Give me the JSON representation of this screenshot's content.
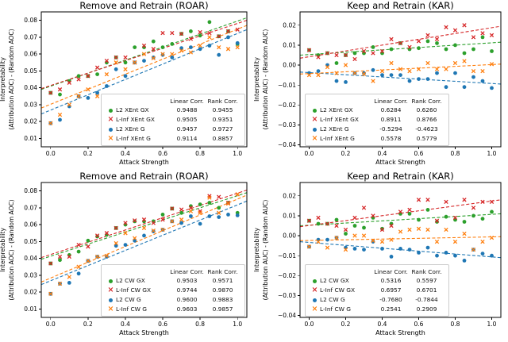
{
  "figure": {
    "background": "#ffffff"
  },
  "chart_data": [
    {
      "id": "roar-xent",
      "type": "scatter",
      "title": "Remove and Retrain (ROAR)",
      "xlabel": "Attack Strength",
      "ylabel": "Interpretability",
      "ylabel2": "(Attribution AOC) - (Random AOC)",
      "xlim": [
        -0.05,
        1.05
      ],
      "ylim": [
        0.005,
        0.085
      ],
      "xticks": [
        0.0,
        0.2,
        0.4,
        0.6,
        0.8,
        1.0
      ],
      "xtick_labels": [
        "0.0",
        "0.2",
        "0.4",
        "0.6",
        "0.8",
        "1.0"
      ],
      "yticks": [
        0.01,
        0.02,
        0.03,
        0.04,
        0.05,
        0.06,
        0.07,
        0.08
      ],
      "ytick_labels": [
        "0.01",
        "0.02",
        "0.03",
        "0.04",
        "0.05",
        "0.06",
        "0.07",
        "0.08"
      ],
      "grid": false,
      "x": [
        0.0,
        0.05,
        0.1,
        0.15,
        0.2,
        0.25,
        0.3,
        0.35,
        0.4,
        0.45,
        0.5,
        0.55,
        0.6,
        0.65,
        0.7,
        0.75,
        0.8,
        0.85,
        0.9,
        0.95,
        1.0
      ],
      "legend": {
        "headers": [
          "Linear Corr.",
          "Rank Corr."
        ],
        "position": "lower right"
      },
      "series": [
        {
          "name": "L2 XEnt GX",
          "marker": "circle",
          "color": "#2ca02c",
          "linear_corr": "0.9488",
          "rank_corr": "0.9455",
          "values": [
            0.037,
            0.036,
            0.044,
            0.047,
            0.047,
            0.048,
            0.055,
            0.058,
            0.055,
            0.064,
            0.064,
            0.0675,
            0.064,
            0.066,
            0.072,
            0.0735,
            0.071,
            0.079,
            0.0705,
            0.0735,
            0.066
          ],
          "trend": {
            "x": [
              -0.05,
              1.05
            ],
            "y": [
              0.039,
              0.0815
            ]
          }
        },
        {
          "name": "L-Inf XEnt GX",
          "marker": "x",
          "color": "#d62728",
          "linear_corr": "0.9505",
          "rank_corr": "0.9351",
          "values": [
            0.037,
            0.039,
            0.043,
            0.045,
            0.047,
            0.052,
            0.056,
            0.058,
            0.058,
            0.055,
            0.065,
            0.063,
            0.0725,
            0.0725,
            0.072,
            0.069,
            0.073,
            0.0725,
            0.0705,
            0.0735,
            0.0745
          ],
          "trend": {
            "x": [
              -0.05,
              1.05
            ],
            "y": [
              0.0395,
              0.08
            ]
          }
        },
        {
          "name": "L2 XEnt G",
          "marker": "circle",
          "color": "#1f77b4",
          "linear_corr": "0.9457",
          "rank_corr": "0.9727",
          "values": [
            0.019,
            0.021,
            0.029,
            0.035,
            0.034,
            0.037,
            0.041,
            0.051,
            0.047,
            0.055,
            0.056,
            0.058,
            0.0595,
            0.058,
            0.0635,
            0.064,
            0.063,
            0.065,
            0.0595,
            0.07,
            0.0665
          ],
          "trend": {
            "x": [
              -0.05,
              1.05
            ],
            "y": [
              0.0245,
              0.0745
            ]
          }
        },
        {
          "name": "L-Inf XEnt G",
          "marker": "x",
          "color": "#ff7f0e",
          "linear_corr": "0.9114",
          "rank_corr": "0.8857",
          "values": [
            0.019,
            0.024,
            0.03,
            0.035,
            0.039,
            0.035,
            0.048,
            0.055,
            0.051,
            0.055,
            0.06,
            0.0575,
            0.06,
            0.06,
            0.062,
            0.061,
            0.065,
            0.07,
            0.064,
            0.063,
            0.064
          ],
          "trend": {
            "x": [
              -0.05,
              1.05
            ],
            "y": [
              0.028,
              0.077
            ]
          }
        }
      ]
    },
    {
      "id": "kar-xent",
      "type": "scatter",
      "title": "Keep and Retrain (KAR)",
      "xlabel": "Attack Strength",
      "ylabel": "Interpretability",
      "ylabel2": "(Attribution AUC) - (Random AUC)",
      "xlim": [
        -0.05,
        1.05
      ],
      "ylim": [
        -0.041,
        0.0267
      ],
      "xticks": [
        0.0,
        0.2,
        0.4,
        0.6,
        0.8,
        1.0
      ],
      "xtick_labels": [
        "0.0",
        "0.2",
        "0.4",
        "0.6",
        "0.8",
        "1.0"
      ],
      "yticks": [
        0.02,
        0.01,
        0.0,
        -0.01,
        -0.02,
        -0.03,
        -0.04
      ],
      "ytick_labels": [
        "0.02",
        "0.01",
        "0.00",
        "−0.01",
        "−0.02",
        "−0.03",
        "−0.04"
      ],
      "grid": false,
      "x": [
        0.0,
        0.05,
        0.1,
        0.15,
        0.2,
        0.25,
        0.3,
        0.35,
        0.4,
        0.45,
        0.5,
        0.55,
        0.6,
        0.65,
        0.7,
        0.75,
        0.8,
        0.85,
        0.9,
        0.95,
        1.0
      ],
      "legend": {
        "headers": [
          "Linear Corr.",
          "Rank Corr."
        ],
        "position": "lower left"
      },
      "series": [
        {
          "name": "L2 XEnt GX",
          "marker": "circle",
          "color": "#2ca02c",
          "linear_corr": "0.6284",
          "rank_corr": "0.6260",
          "values": [
            0.0075,
            0.005,
            0.006,
            0.001,
            0.005,
            0.006,
            0.006,
            0.009,
            0.006,
            0.008,
            0.011,
            0.008,
            0.0085,
            0.012,
            0.011,
            0.008,
            0.01,
            0.006,
            0.008,
            0.014,
            0.007
          ],
          "trend": {
            "x": [
              -0.05,
              1.05
            ],
            "y": [
              0.005,
              0.0115
            ]
          }
        },
        {
          "name": "L-Inf XEnt GX",
          "marker": "x",
          "color": "#d62728",
          "linear_corr": "0.8911",
          "rank_corr": "0.8766",
          "values": [
            0.0075,
            0.004,
            0.006,
            0.005,
            0.005,
            0.003,
            0.007,
            0.006,
            0.007,
            0.013,
            0.011,
            0.009,
            0.012,
            0.015,
            0.013,
            0.019,
            0.0175,
            0.02,
            0.014,
            0.016,
            0.015
          ],
          "trend": {
            "x": [
              -0.05,
              1.05
            ],
            "y": [
              0.0035,
              0.0195
            ]
          }
        },
        {
          "name": "L2 XEnt G",
          "marker": "circle",
          "color": "#1f77b4",
          "linear_corr": "-0.5294",
          "rank_corr": "-0.4623",
          "values": [
            -0.004,
            -0.003,
            0.0,
            -0.008,
            -0.0085,
            -0.004,
            -0.004,
            -0.0025,
            -0.005,
            -0.005,
            -0.005,
            -0.008,
            -0.007,
            -0.007,
            -0.004,
            -0.011,
            -0.004,
            -0.011,
            -0.006,
            -0.008,
            -0.0115
          ],
          "trend": {
            "x": [
              -0.05,
              1.05
            ],
            "y": [
              -0.0035,
              -0.0095
            ]
          }
        },
        {
          "name": "L-Inf XEnt G",
          "marker": "x",
          "color": "#ff7f0e",
          "linear_corr": "0.5578",
          "rank_corr": "0.5779",
          "values": [
            -0.005,
            -0.005,
            -0.001,
            -0.004,
            0.0,
            -0.004,
            -0.0045,
            -0.008,
            -0.003,
            0.001,
            -0.002,
            -0.003,
            -0.002,
            0.001,
            -0.002,
            -0.002,
            0.001,
            0.002,
            -0.003,
            -0.003,
            0.0005
          ],
          "trend": {
            "x": [
              -0.05,
              1.05
            ],
            "y": [
              -0.0045,
              0.0005
            ]
          }
        }
      ]
    },
    {
      "id": "roar-cw",
      "type": "scatter",
      "title": "Remove and Retrain (ROAR)",
      "xlabel": "Attack Strength",
      "ylabel": "Interpretability",
      "ylabel2": "(Attribution AOC) - (Random AOC)",
      "xlim": [
        -0.05,
        1.05
      ],
      "ylim": [
        0.005,
        0.085
      ],
      "xticks": [
        0.0,
        0.2,
        0.4,
        0.6,
        0.8,
        1.0
      ],
      "xtick_labels": [
        "0.0",
        "0.2",
        "0.4",
        "0.6",
        "0.8",
        "1.0"
      ],
      "yticks": [
        0.01,
        0.02,
        0.03,
        0.04,
        0.05,
        0.06,
        0.07,
        0.08
      ],
      "ytick_labels": [
        "0.01",
        "0.02",
        "0.03",
        "0.04",
        "0.05",
        "0.06",
        "0.07",
        "0.08"
      ],
      "grid": false,
      "x": [
        0.0,
        0.05,
        0.1,
        0.15,
        0.2,
        0.25,
        0.3,
        0.35,
        0.4,
        0.45,
        0.5,
        0.55,
        0.6,
        0.65,
        0.7,
        0.75,
        0.8,
        0.85,
        0.9,
        0.95,
        1.0
      ],
      "legend": {
        "headers": [
          "Linear Corr.",
          "Rank Corr."
        ],
        "position": "lower right"
      },
      "series": [
        {
          "name": "L2 CW GX",
          "marker": "circle",
          "color": "#2ca02c",
          "linear_corr": "0.9503",
          "rank_corr": "0.9571",
          "values": [
            0.037,
            0.039,
            0.042,
            0.044,
            0.0505,
            0.053,
            0.054,
            0.058,
            0.06,
            0.062,
            0.062,
            0.062,
            0.066,
            0.0695,
            0.067,
            0.071,
            0.072,
            0.073,
            0.07,
            0.073,
            0.067
          ],
          "trend": {
            "x": [
              -0.05,
              1.05
            ],
            "y": [
              0.0395,
              0.079
            ]
          }
        },
        {
          "name": "L-Inf CW GX",
          "marker": "x",
          "color": "#d62728",
          "linear_corr": "0.9744",
          "rank_corr": "0.9870",
          "values": [
            0.037,
            0.041,
            0.041,
            0.048,
            0.047,
            0.0535,
            0.055,
            0.058,
            0.061,
            0.0625,
            0.063,
            0.061,
            0.063,
            0.0695,
            0.069,
            0.07,
            0.068,
            0.077,
            0.0765,
            0.073,
            0.078
          ],
          "trend": {
            "x": [
              -0.05,
              1.05
            ],
            "y": [
              0.0405,
              0.0805
            ]
          }
        },
        {
          "name": "L2 CW G",
          "marker": "circle",
          "color": "#1f77b4",
          "linear_corr": "0.9600",
          "rank_corr": "0.9883",
          "values": [
            0.019,
            0.025,
            0.0255,
            0.031,
            0.0385,
            0.041,
            0.041,
            0.0475,
            0.048,
            0.0505,
            0.0535,
            0.056,
            0.057,
            0.062,
            0.061,
            0.065,
            0.0605,
            0.065,
            0.0645,
            0.066,
            0.0655
          ],
          "trend": {
            "x": [
              -0.05,
              1.05
            ],
            "y": [
              0.0245,
              0.074
            ]
          }
        },
        {
          "name": "L-Inf CW G",
          "marker": "x",
          "color": "#ff7f0e",
          "linear_corr": "0.9603",
          "rank_corr": "0.9857",
          "values": [
            0.019,
            0.025,
            0.029,
            0.035,
            0.0385,
            0.041,
            0.0415,
            0.049,
            0.055,
            0.052,
            0.058,
            0.0565,
            0.057,
            0.062,
            0.063,
            0.068,
            0.067,
            0.076,
            0.067,
            0.0725,
            0.078
          ],
          "trend": {
            "x": [
              -0.05,
              1.05
            ],
            "y": [
              0.026,
              0.0775
            ]
          }
        }
      ]
    },
    {
      "id": "kar-cw",
      "type": "scatter",
      "title": "Keep and Retrain (KAR)",
      "xlabel": "Attack Strength",
      "ylabel": "Interpretability",
      "ylabel2": "(Attribution AUC) - (Random AUC)",
      "xlim": [
        -0.05,
        1.05
      ],
      "ylim": [
        -0.041,
        0.0267
      ],
      "xticks": [
        0.0,
        0.2,
        0.4,
        0.6,
        0.8,
        1.0
      ],
      "xtick_labels": [
        "0.0",
        "0.2",
        "0.4",
        "0.6",
        "0.8",
        "1.0"
      ],
      "yticks": [
        0.02,
        0.01,
        0.0,
        -0.01,
        -0.02,
        -0.03,
        -0.04
      ],
      "ytick_labels": [
        "0.02",
        "0.01",
        "0.00",
        "−0.01",
        "−0.02",
        "−0.03",
        "−0.04"
      ],
      "grid": false,
      "x": [
        0.0,
        0.05,
        0.1,
        0.15,
        0.2,
        0.25,
        0.3,
        0.35,
        0.4,
        0.45,
        0.5,
        0.55,
        0.6,
        0.65,
        0.7,
        0.75,
        0.8,
        0.85,
        0.9,
        0.95,
        1.0
      ],
      "legend": {
        "headers": [
          "Linear Corr.",
          "Rank Corr."
        ],
        "position": "lower left"
      },
      "series": [
        {
          "name": "L2 CW GX",
          "marker": "circle",
          "color": "#2ca02c",
          "linear_corr": "0.5316",
          "rank_corr": "0.5597",
          "values": [
            0.0075,
            0.006,
            0.006,
            0.008,
            0.001,
            0.005,
            0.004,
            0.009,
            0.0035,
            0.006,
            0.011,
            0.011,
            0.008,
            0.013,
            0.007,
            0.0095,
            0.008,
            0.007,
            0.01,
            0.0085,
            0.012
          ],
          "trend": {
            "x": [
              -0.05,
              1.05
            ],
            "y": [
              0.005,
              0.011
            ]
          }
        },
        {
          "name": "L-Inf CW GX",
          "marker": "x",
          "color": "#d62728",
          "linear_corr": "0.6957",
          "rank_corr": "0.6701",
          "values": [
            0.0075,
            0.009,
            0.006,
            0.005,
            0.003,
            0.009,
            0.014,
            0.01,
            0.003,
            0.005,
            0.012,
            0.013,
            0.018,
            0.018,
            0.0075,
            0.017,
            0.009,
            0.018,
            0.014,
            0.017,
            0.017
          ],
          "trend": {
            "x": [
              -0.05,
              1.05
            ],
            "y": [
              0.0045,
              0.018
            ]
          }
        },
        {
          "name": "L2 CW G",
          "marker": "circle",
          "color": "#1f77b4",
          "linear_corr": "-0.7680",
          "rank_corr": "-0.7844",
          "values": [
            -0.0055,
            -0.002,
            -0.002,
            -0.001,
            -0.006,
            -0.0065,
            -0.007,
            -0.003,
            -0.0065,
            -0.0105,
            -0.0065,
            -0.007,
            -0.0085,
            -0.006,
            -0.01,
            -0.0085,
            -0.01,
            -0.0125,
            -0.007,
            -0.009,
            -0.01
          ],
          "trend": {
            "x": [
              -0.05,
              1.05
            ],
            "y": [
              -0.003,
              -0.011
            ]
          }
        },
        {
          "name": "L-Inf CW G",
          "marker": "x",
          "color": "#ff7f0e",
          "linear_corr": "0.2541",
          "rank_corr": "0.2909",
          "values": [
            -0.0055,
            -0.003,
            -0.006,
            -0.001,
            -0.007,
            0.0,
            0.0,
            -0.0025,
            -0.003,
            -0.002,
            0.002,
            0.003,
            0.0035,
            0.003,
            -0.003,
            0.003,
            -0.003,
            0.001,
            -0.007,
            -0.003,
            -0.001
          ],
          "trend": {
            "x": [
              -0.05,
              1.05
            ],
            "y": [
              -0.0025,
              -0.0005
            ]
          }
        }
      ]
    }
  ]
}
